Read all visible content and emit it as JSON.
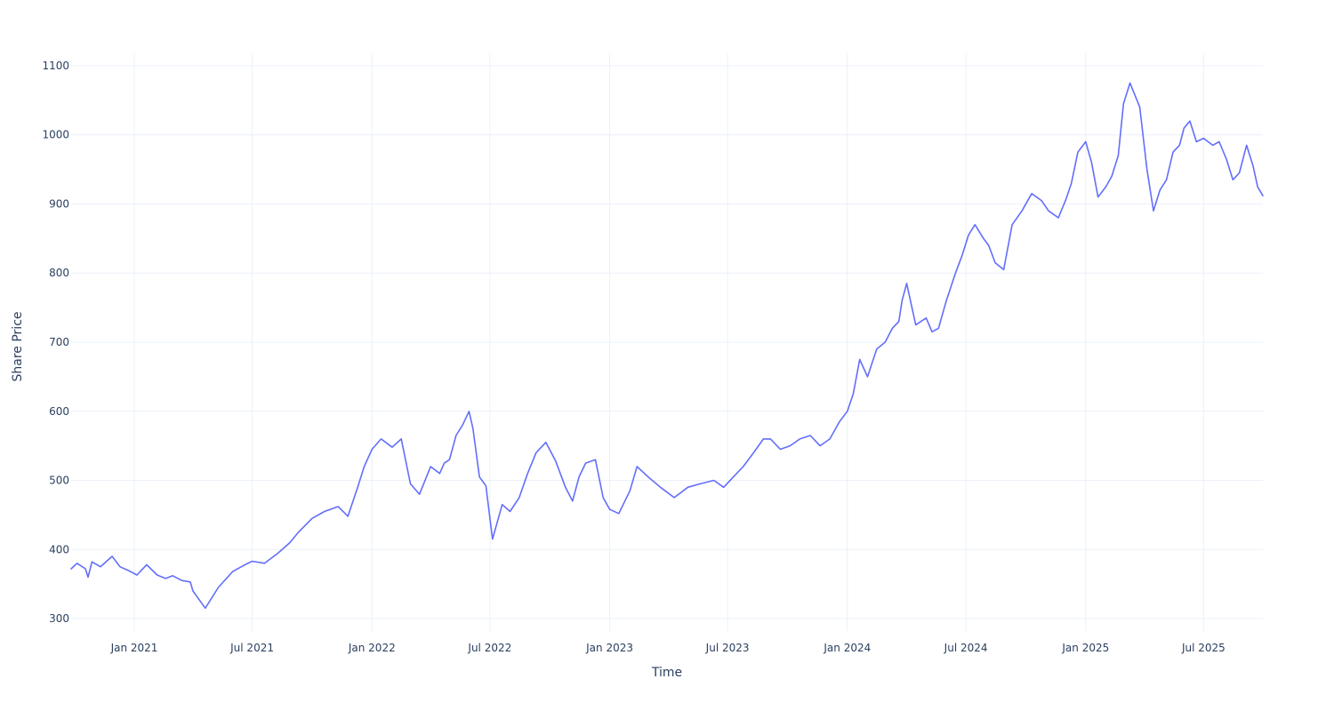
{
  "chart_data": {
    "type": "line",
    "title": "",
    "xlabel": "Time",
    "ylabel": "Share Price",
    "xlim": [
      "2020-09-26",
      "2025-09-30"
    ],
    "ylim": [
      282,
      1118
    ],
    "grid": true,
    "x_ticks": [
      {
        "date": "2021-01-01",
        "label": "Jan 2021"
      },
      {
        "date": "2021-07-01",
        "label": "Jul 2021"
      },
      {
        "date": "2022-01-01",
        "label": "Jan 2022"
      },
      {
        "date": "2022-07-01",
        "label": "Jul 2022"
      },
      {
        "date": "2023-01-01",
        "label": "Jan 2023"
      },
      {
        "date": "2023-07-01",
        "label": "Jul 2023"
      },
      {
        "date": "2024-01-01",
        "label": "Jan 2024"
      },
      {
        "date": "2024-07-01",
        "label": "Jul 2024"
      },
      {
        "date": "2025-01-01",
        "label": "Jan 2025"
      },
      {
        "date": "2025-07-01",
        "label": "Jul 2025"
      }
    ],
    "y_ticks": [
      {
        "value": 300,
        "label": "300"
      },
      {
        "value": 400,
        "label": "400"
      },
      {
        "value": 500,
        "label": "500"
      },
      {
        "value": 600,
        "label": "600"
      },
      {
        "value": 700,
        "label": "700"
      },
      {
        "value": 800,
        "label": "800"
      },
      {
        "value": 900,
        "label": "900"
      },
      {
        "value": 1000,
        "label": "1000"
      },
      {
        "value": 1100,
        "label": "1100"
      }
    ],
    "line_color": "#636efa",
    "grid_color": "#ebf0f8",
    "series": [
      {
        "x": [
          "2020-09-26",
          "2020-10-05",
          "2020-10-18",
          "2020-10-22",
          "2020-10-28",
          "2020-11-10",
          "2020-11-22",
          "2020-11-28",
          "2020-12-10",
          "2020-12-22",
          "2021-01-05",
          "2021-01-20",
          "2021-02-05",
          "2021-02-18",
          "2021-03-01",
          "2021-03-15",
          "2021-03-28",
          "2021-04-01",
          "2021-04-20",
          "2021-05-10",
          "2021-06-01",
          "2021-06-20",
          "2021-07-01",
          "2021-07-20",
          "2021-08-10",
          "2021-08-28",
          "2021-09-10",
          "2021-10-01",
          "2021-10-20",
          "2021-11-10",
          "2021-11-25",
          "2021-12-10",
          "2021-12-20",
          "2022-01-01",
          "2022-01-15",
          "2022-02-01",
          "2022-02-15",
          "2022-03-01",
          "2022-03-15",
          "2022-04-01",
          "2022-04-15",
          "2022-04-22",
          "2022-04-30",
          "2022-05-10",
          "2022-05-20",
          "2022-05-30",
          "2022-06-05",
          "2022-06-15",
          "2022-06-25",
          "2022-07-05",
          "2022-07-20",
          "2022-08-01",
          "2022-08-15",
          "2022-08-28",
          "2022-09-10",
          "2022-09-25",
          "2022-10-10",
          "2022-10-25",
          "2022-11-05",
          "2022-11-15",
          "2022-11-25",
          "2022-12-10",
          "2022-12-22",
          "2023-01-01",
          "2023-01-15",
          "2023-02-01",
          "2023-02-12",
          "2023-03-01",
          "2023-03-20",
          "2023-04-10",
          "2023-05-01",
          "2023-05-20",
          "2023-06-10",
          "2023-06-25",
          "2023-07-10",
          "2023-07-25",
          "2023-08-10",
          "2023-08-25",
          "2023-09-05",
          "2023-09-20",
          "2023-10-05",
          "2023-10-20",
          "2023-11-05",
          "2023-11-20",
          "2023-12-05",
          "2023-12-20",
          "2024-01-01",
          "2024-01-10",
          "2024-01-20",
          "2024-02-01",
          "2024-02-15",
          "2024-02-28",
          "2024-03-10",
          "2024-03-20",
          "2024-03-25",
          "2024-04-01",
          "2024-04-15",
          "2024-05-01",
          "2024-05-10",
          "2024-05-20",
          "2024-06-01",
          "2024-06-15",
          "2024-06-25",
          "2024-07-05",
          "2024-07-15",
          "2024-07-28",
          "2024-08-05",
          "2024-08-15",
          "2024-08-28",
          "2024-09-10",
          "2024-09-25",
          "2024-10-10",
          "2024-10-25",
          "2024-11-05",
          "2024-11-20",
          "2024-12-01",
          "2024-12-10",
          "2024-12-20",
          "2025-01-01",
          "2025-01-10",
          "2025-01-20",
          "2025-02-01",
          "2025-02-10",
          "2025-02-20",
          "2025-02-28",
          "2025-03-10",
          "2025-03-25",
          "2025-04-05",
          "2025-04-15",
          "2025-04-25",
          "2025-05-05",
          "2025-05-15",
          "2025-05-25",
          "2025-06-01",
          "2025-06-10",
          "2025-06-20",
          "2025-07-01",
          "2025-07-15",
          "2025-07-25",
          "2025-08-05",
          "2025-08-15",
          "2025-08-25",
          "2025-09-05",
          "2025-09-15",
          "2025-09-22",
          "2025-09-30"
        ],
        "y": [
          372,
          380,
          372,
          360,
          382,
          375,
          385,
          390,
          375,
          370,
          363,
          378,
          363,
          358,
          362,
          355,
          353,
          340,
          315,
          345,
          368,
          378,
          383,
          380,
          395,
          410,
          425,
          445,
          455,
          462,
          448,
          490,
          520,
          545,
          560,
          548,
          560,
          495,
          480,
          520,
          510,
          525,
          530,
          565,
          580,
          600,
          575,
          505,
          492,
          415,
          465,
          455,
          475,
          510,
          540,
          555,
          528,
          490,
          470,
          505,
          525,
          530,
          475,
          458,
          452,
          485,
          520,
          505,
          490,
          475,
          490,
          495,
          500,
          490,
          505,
          520,
          540,
          560,
          560,
          545,
          550,
          560,
          565,
          550,
          560,
          585,
          600,
          625,
          675,
          650,
          690,
          700,
          720,
          730,
          760,
          785,
          725,
          735,
          715,
          720,
          760,
          800,
          825,
          855,
          870,
          850,
          840,
          815,
          805,
          870,
          890,
          915,
          905,
          890,
          880,
          905,
          930,
          975,
          990,
          960,
          910,
          925,
          940,
          970,
          1045,
          1075,
          1040,
          950,
          890,
          920,
          935,
          975,
          985,
          1010,
          1020,
          990,
          995,
          985,
          990,
          965,
          935,
          945,
          985,
          955,
          925,
          912
        ]
      }
    ]
  }
}
